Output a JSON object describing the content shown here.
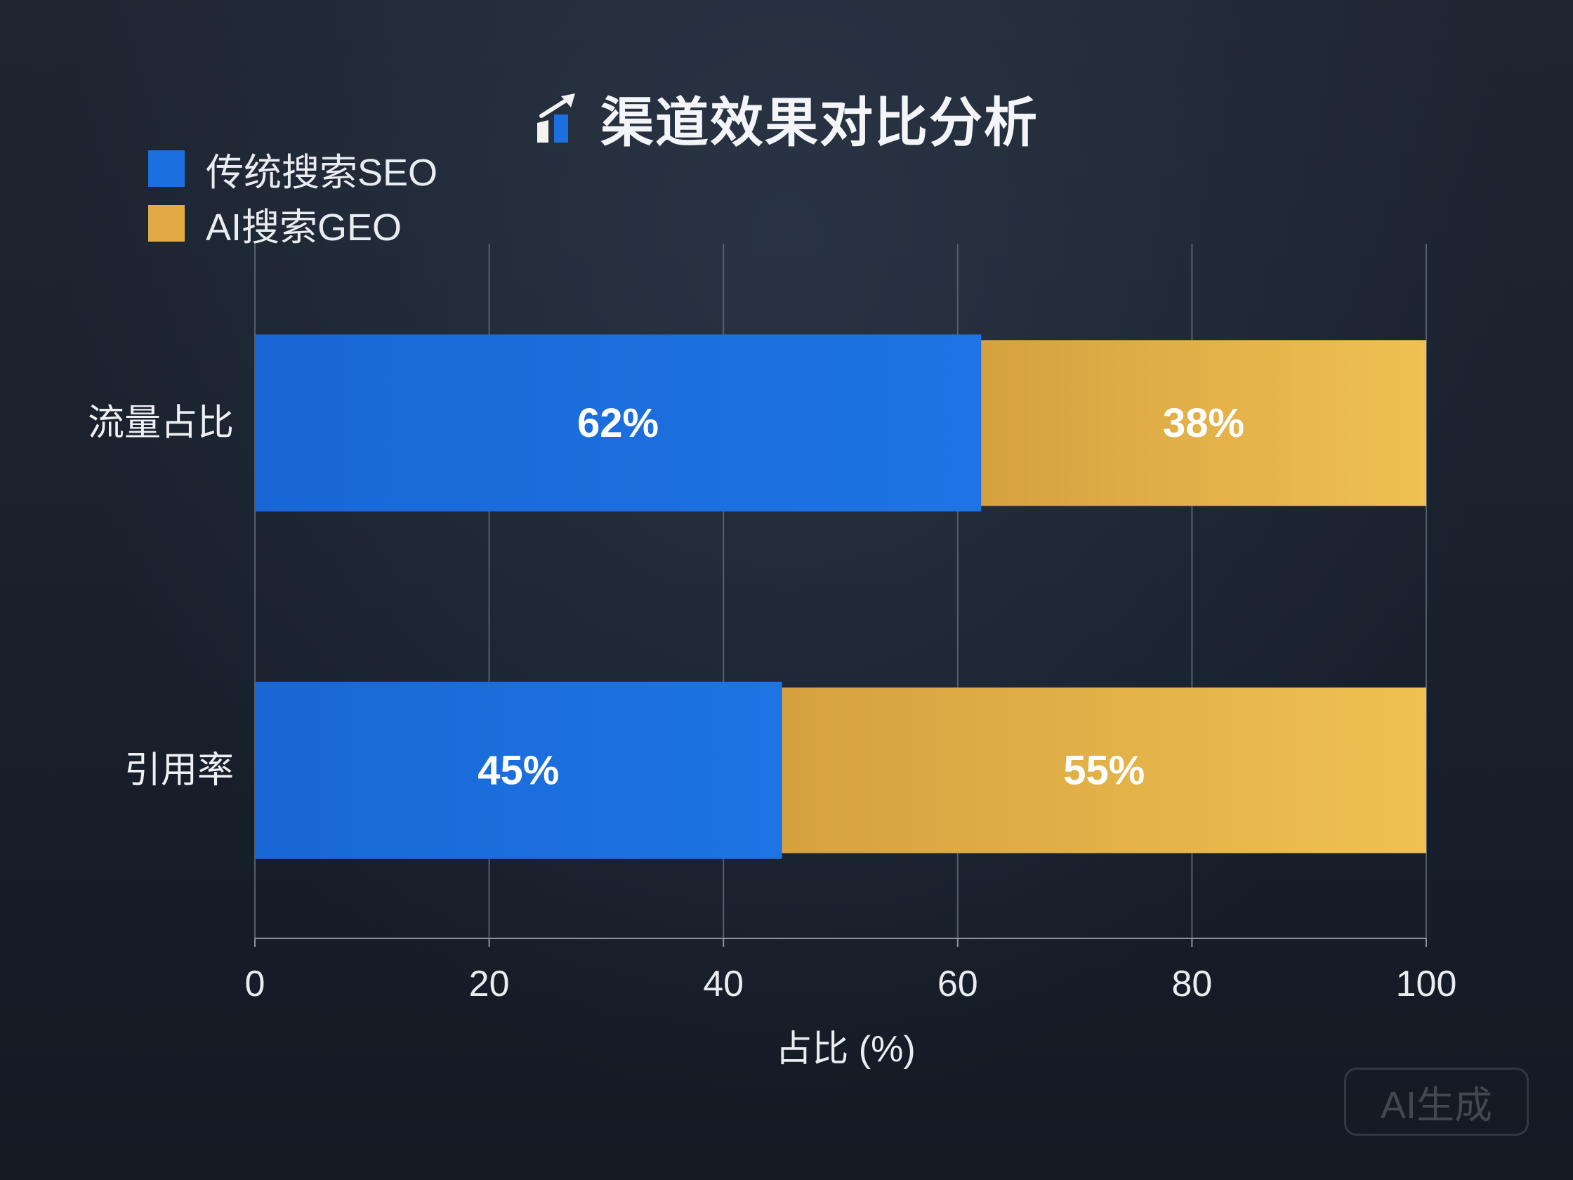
{
  "title_icon": "chart-increasing-icon",
  "watermark": "AI生成",
  "chart_data": {
    "type": "bar",
    "orientation": "horizontal",
    "stacked": true,
    "title": "渠道效果对比分析",
    "categories": [
      "流量占比",
      "引用率"
    ],
    "series": [
      {
        "name": "传统搜索SEO",
        "values": [
          62,
          45
        ],
        "labels": [
          "62%",
          "45%"
        ],
        "color": "#1b6fdf"
      },
      {
        "name": "AI搜索GEO",
        "values": [
          38,
          55
        ],
        "labels": [
          "38%",
          "55%"
        ],
        "color": "#e2aa44"
      }
    ],
    "xlabel": "占比 (%)",
    "xlim": [
      0,
      100
    ],
    "xticks": [
      0,
      20,
      40,
      60,
      80,
      100
    ],
    "xtick_labels": [
      "0",
      "20",
      "40",
      "60",
      "80",
      "100"
    ],
    "grid": "vertical",
    "legend_position": "top-left"
  }
}
